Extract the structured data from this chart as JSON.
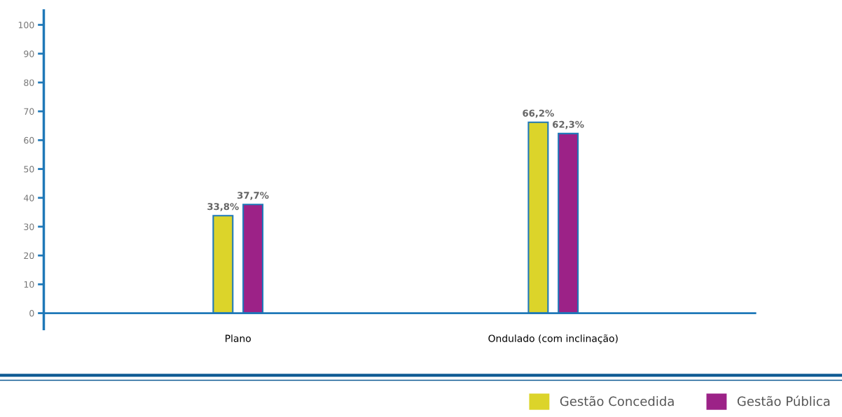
{
  "chart_data": {
    "type": "bar",
    "categories": [
      "Plano",
      "Ondulado (com inclinação)"
    ],
    "series": [
      {
        "name": "Gestão Concedida",
        "color": "#dcd42a",
        "values": [
          33.8,
          66.2
        ],
        "value_labels": [
          "33,8%",
          "66,2%"
        ]
      },
      {
        "name": "Gestão Pública",
        "color": "#9c2287",
        "values": [
          37.7,
          62.3
        ],
        "value_labels": [
          "37,7%",
          "62,3%"
        ]
      }
    ],
    "ylim": [
      -5.5,
      105
    ],
    "yticks": [
      0,
      10,
      20,
      30,
      40,
      50,
      60,
      70,
      80,
      90,
      100
    ],
    "grid": false,
    "legend": "bottom right"
  }
}
